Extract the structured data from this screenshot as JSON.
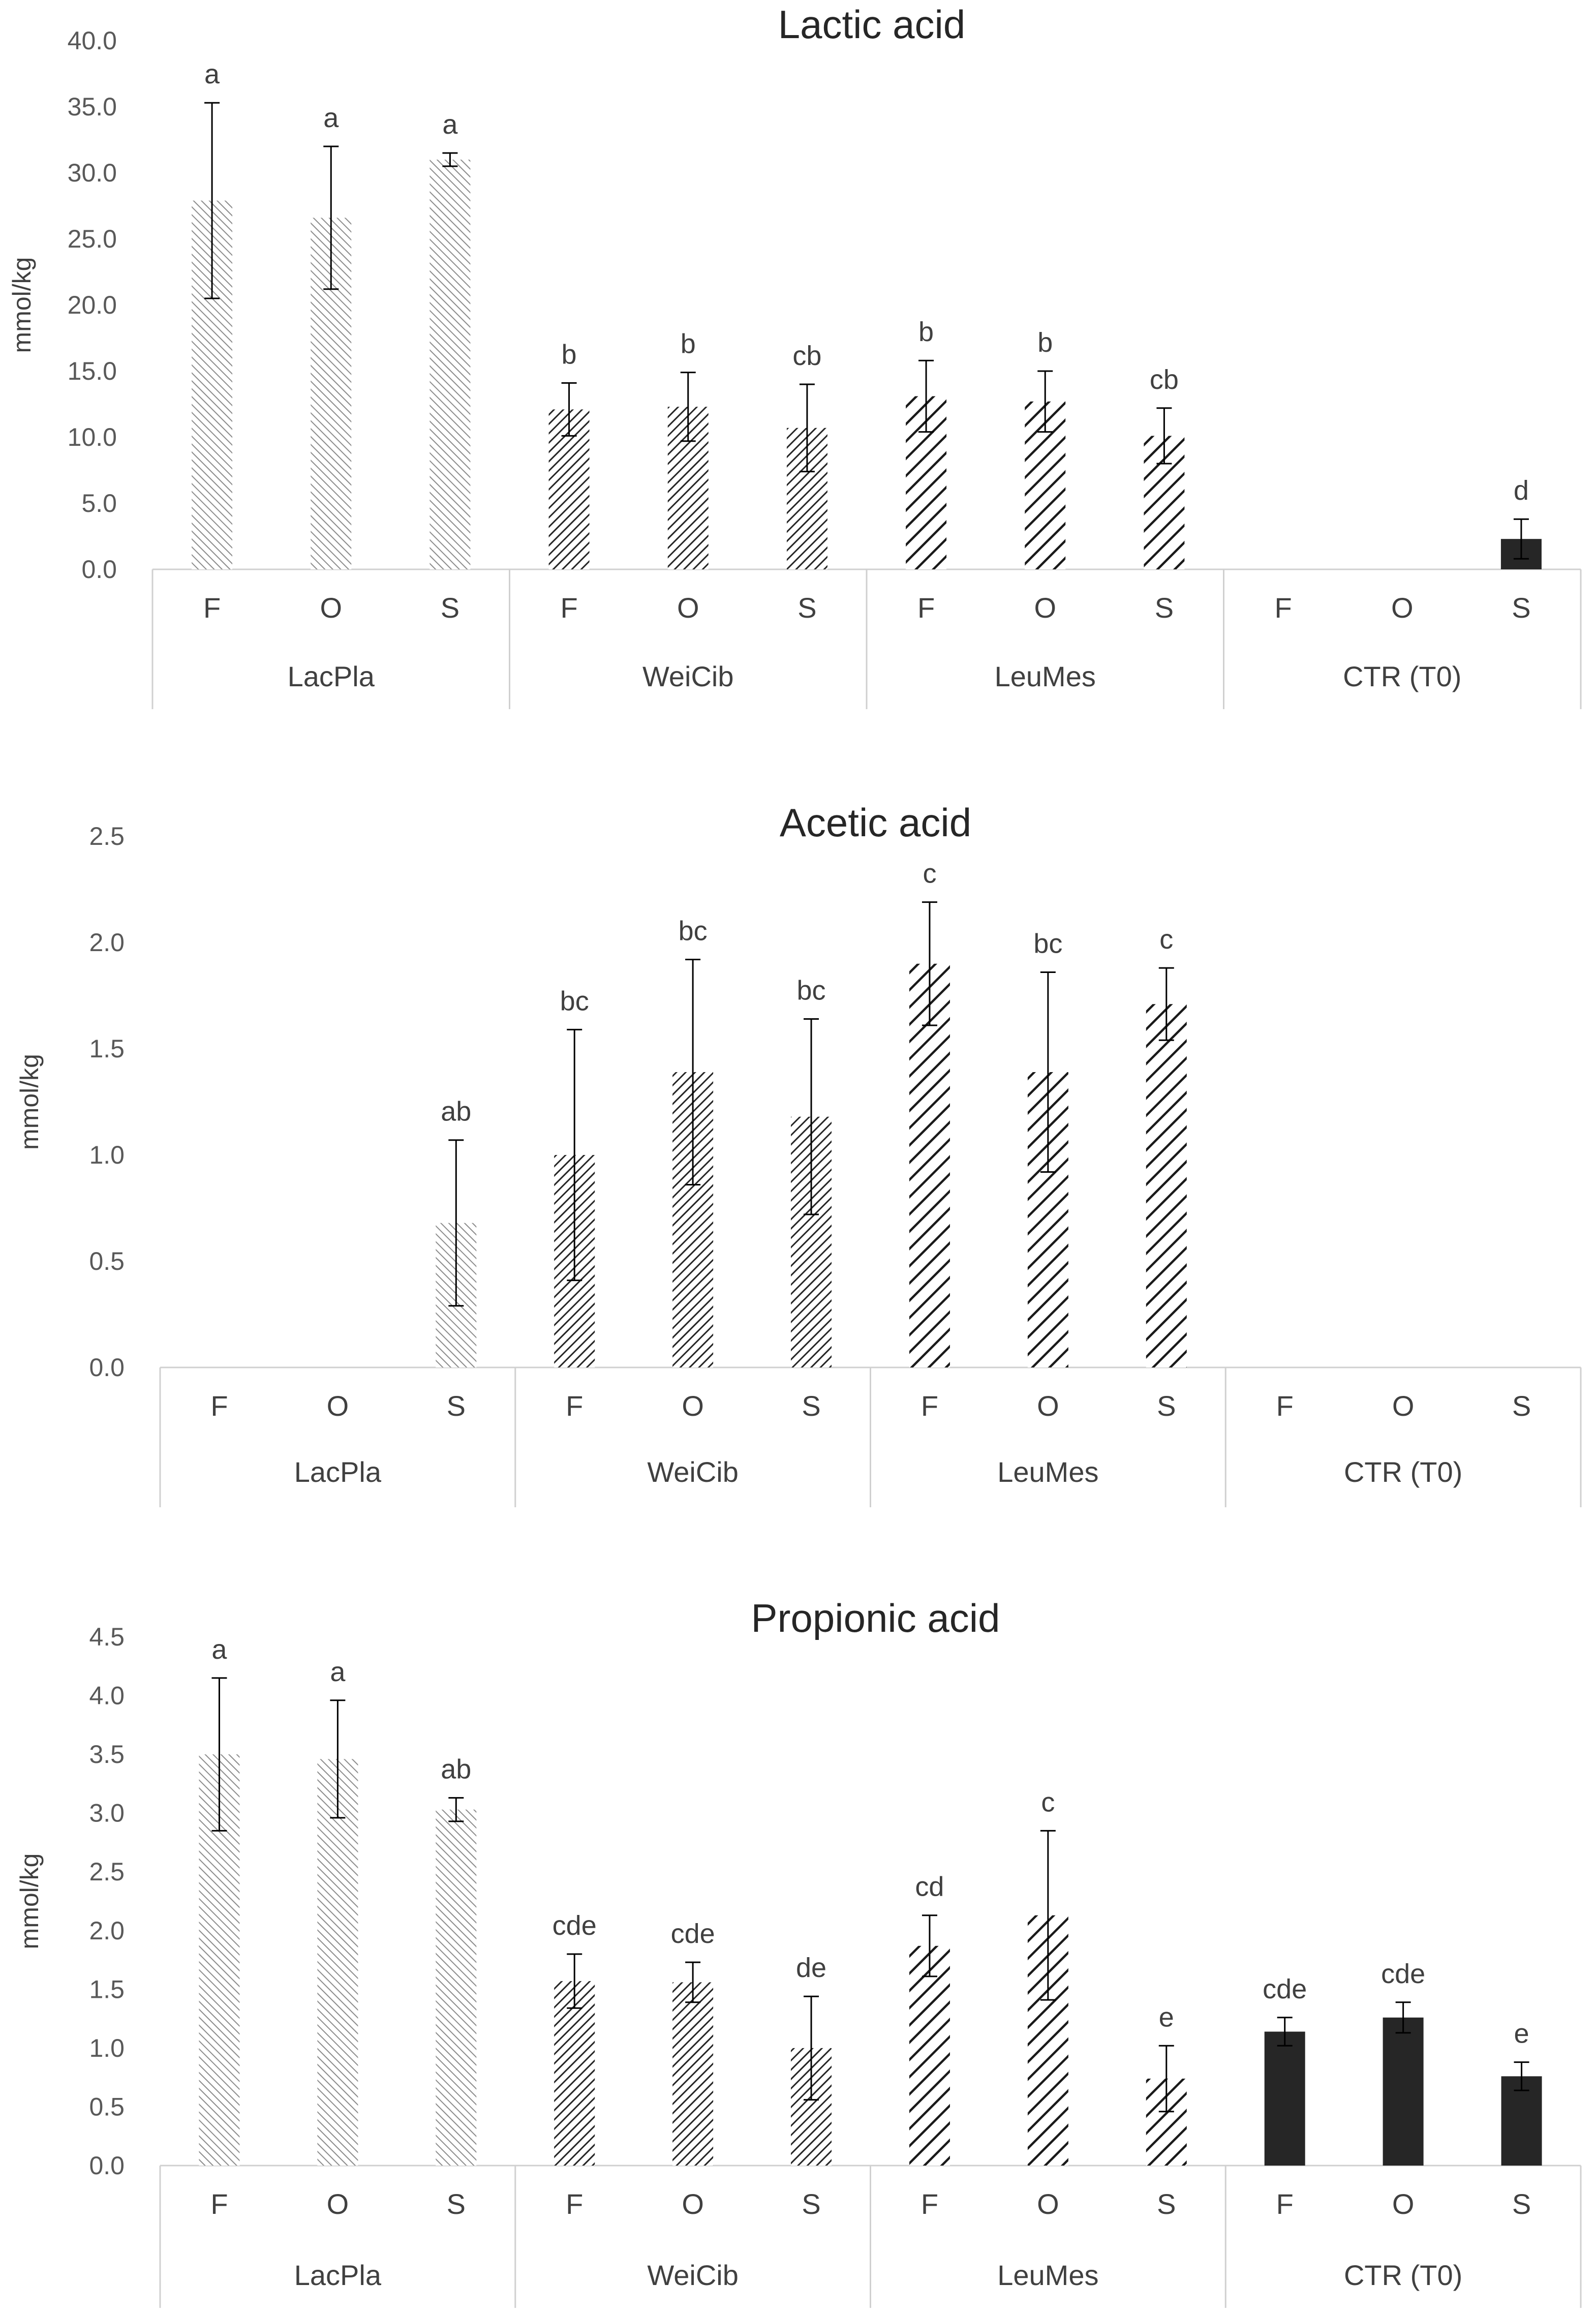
{
  "chart_data": [
    {
      "type": "bar",
      "title": "Lactic acid",
      "ylabel": "mmol/kg",
      "xlabel": "",
      "ylim": [
        0,
        40
      ],
      "ytick_step": 5,
      "ytick_decimals": 1,
      "groups": [
        "LacPla",
        "WeiCib",
        "LeuMes",
        "CTR (T0)"
      ],
      "categories": [
        "F",
        "O",
        "S"
      ],
      "series": [
        {
          "name": "LacPla",
          "pattern": "light",
          "values": [
            27.9,
            26.6,
            31.0
          ],
          "errors": [
            7.4,
            5.4,
            0.5
          ],
          "labels": [
            "a",
            "a",
            "a"
          ]
        },
        {
          "name": "WeiCib",
          "pattern": "dense",
          "values": [
            12.1,
            12.3,
            10.7
          ],
          "errors": [
            2.0,
            2.6,
            3.3
          ],
          "labels": [
            "b",
            "b",
            "cb"
          ]
        },
        {
          "name": "LeuMes",
          "pattern": "bold",
          "values": [
            13.1,
            12.7,
            10.1
          ],
          "errors": [
            2.7,
            2.3,
            2.1
          ],
          "labels": [
            "b",
            "b",
            "cb"
          ]
        },
        {
          "name": "CTR (T0)",
          "pattern": "solid",
          "values": [
            null,
            null,
            2.3
          ],
          "errors": [
            null,
            null,
            1.5
          ],
          "labels": [
            "",
            "",
            "d"
          ]
        }
      ]
    },
    {
      "type": "bar",
      "title": "Acetic acid",
      "ylabel": "mmol/kg",
      "xlabel": "",
      "ylim": [
        0,
        2.5
      ],
      "ytick_step": 0.5,
      "ytick_decimals": 1,
      "groups": [
        "LacPla",
        "WeiCib",
        "LeuMes",
        "CTR (T0)"
      ],
      "categories": [
        "F",
        "O",
        "S"
      ],
      "series": [
        {
          "name": "LacPla",
          "pattern": "light",
          "values": [
            null,
            null,
            0.68
          ],
          "errors": [
            null,
            null,
            0.39
          ],
          "labels": [
            "",
            "",
            "ab"
          ]
        },
        {
          "name": "WeiCib",
          "pattern": "dense",
          "values": [
            1.0,
            1.39,
            1.18
          ],
          "errors": [
            0.59,
            0.53,
            0.46
          ],
          "labels": [
            "bc",
            "bc",
            "bc"
          ]
        },
        {
          "name": "LeuMes",
          "pattern": "bold",
          "values": [
            1.9,
            1.39,
            1.71
          ],
          "errors": [
            0.29,
            0.47,
            0.17
          ],
          "labels": [
            "c",
            "bc",
            "c"
          ]
        },
        {
          "name": "CTR (T0)",
          "pattern": "solid",
          "values": [
            null,
            null,
            null
          ],
          "errors": [
            null,
            null,
            null
          ],
          "labels": [
            "",
            "",
            ""
          ]
        }
      ]
    },
    {
      "type": "bar",
      "title": "Propionic acid",
      "ylabel": "mmol/kg",
      "xlabel": "",
      "ylim": [
        0,
        4.5
      ],
      "ytick_step": 0.5,
      "ytick_decimals": 1,
      "groups": [
        "LacPla",
        "WeiCib",
        "LeuMes",
        "CTR (T0)"
      ],
      "categories": [
        "F",
        "O",
        "S"
      ],
      "series": [
        {
          "name": "LacPla",
          "pattern": "light",
          "values": [
            3.5,
            3.46,
            3.03
          ],
          "errors": [
            0.65,
            0.5,
            0.1
          ],
          "labels": [
            "a",
            "a",
            "ab"
          ]
        },
        {
          "name": "WeiCib",
          "pattern": "dense",
          "values": [
            1.57,
            1.56,
            1.0
          ],
          "errors": [
            0.23,
            0.17,
            0.44
          ],
          "labels": [
            "cde",
            "cde",
            "de"
          ]
        },
        {
          "name": "LeuMes",
          "pattern": "bold",
          "values": [
            1.87,
            2.13,
            0.74
          ],
          "errors": [
            0.26,
            0.72,
            0.28
          ],
          "labels": [
            "cd",
            "c",
            "e"
          ]
        },
        {
          "name": "CTR (T0)",
          "pattern": "solid",
          "values": [
            1.14,
            1.26,
            0.76
          ],
          "errors": [
            0.12,
            0.13,
            0.12
          ],
          "labels": [
            "cde",
            "cde",
            "e"
          ]
        }
      ]
    }
  ]
}
